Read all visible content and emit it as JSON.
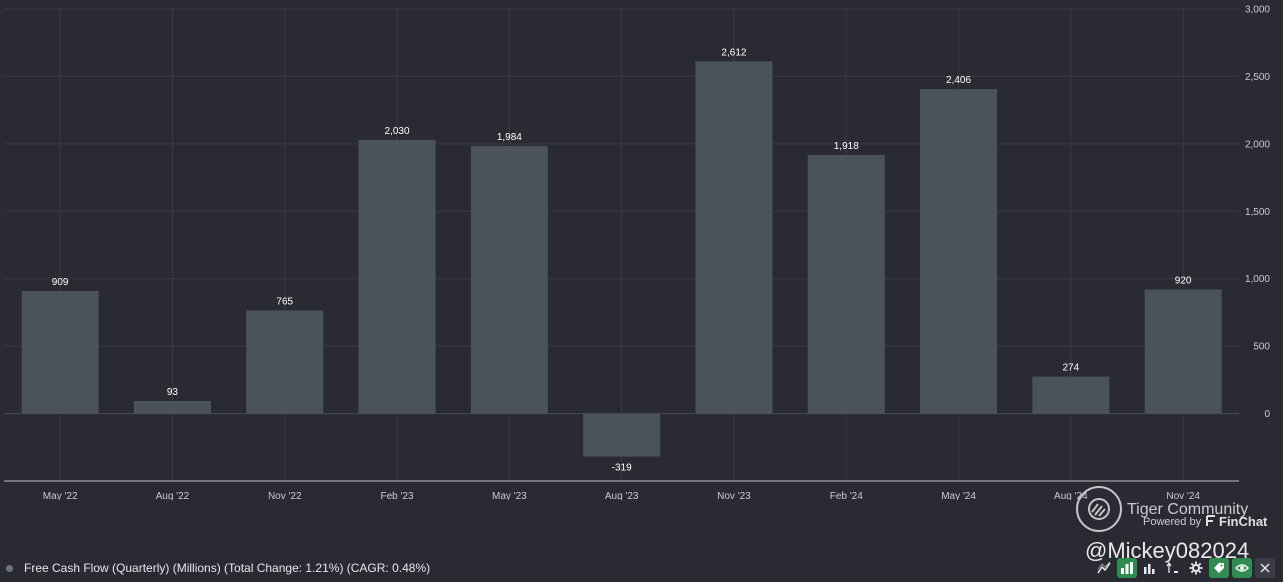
{
  "chart_data": {
    "type": "bar",
    "categories": [
      "May '22",
      "Aug '22",
      "Nov '22",
      "Feb '23",
      "May '23",
      "Aug '23",
      "Nov '23",
      "Feb '24",
      "May '24",
      "Aug '24",
      "Nov '24"
    ],
    "values": [
      909,
      93,
      765,
      2030,
      1984,
      -319,
      2612,
      1918,
      2406,
      274,
      920
    ],
    "value_labels": [
      "909",
      "93",
      "765",
      "2,030",
      "1,984",
      "-319",
      "2,612",
      "1,918",
      "2,406",
      "274",
      "920"
    ],
    "y_ticks": [
      0,
      500,
      1000,
      1500,
      2000,
      2500,
      3000
    ],
    "y_tick_labels": [
      "0",
      "500",
      "1,000",
      "1,500",
      "2,000",
      "2,500",
      "3,000"
    ],
    "ylim": [
      -500,
      3000
    ],
    "y_axis_side": "right",
    "grid": true,
    "bar_color": "#4a535b",
    "background_color": "#2a2a33"
  },
  "legend": {
    "text": "Free Cash Flow (Quarterly) (Millions) (Total Change: 1.21%) (CAGR: 0.48%)"
  },
  "watermark": {
    "title": "Tiger Community",
    "powered_by": "Powered by",
    "brand": "FinChat",
    "handle": "@Mickey082024"
  },
  "toolbar": {
    "icons": [
      "trend-icon",
      "bar-chart-icon",
      "column-chart-icon",
      "scale-icon",
      "gear-icon",
      "tag-icon",
      "eye-icon",
      "close-icon"
    ],
    "accent_color": "#2f8d52"
  }
}
